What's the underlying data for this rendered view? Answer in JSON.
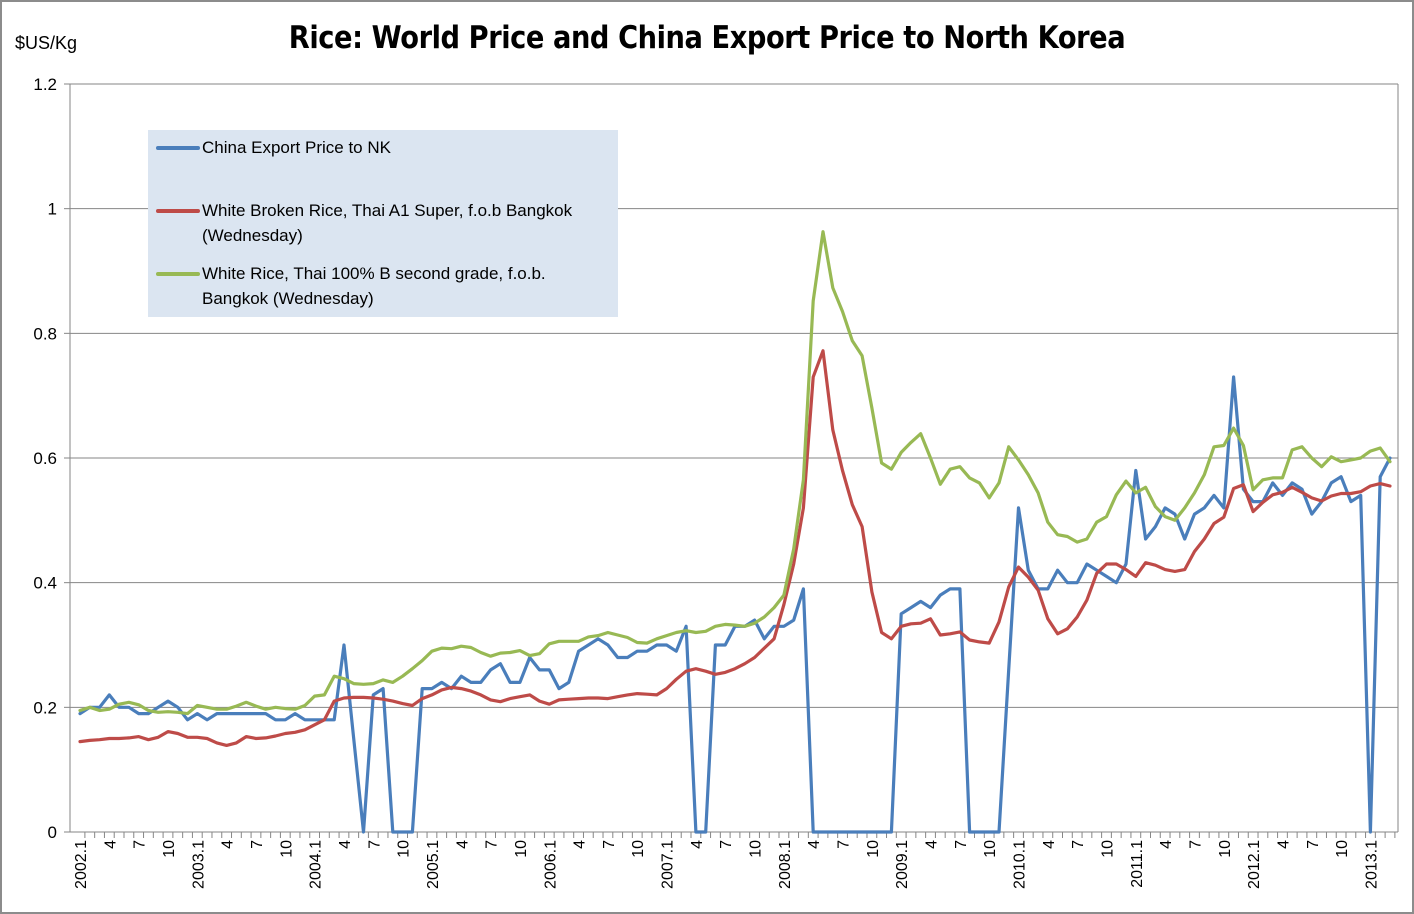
{
  "chart_data": {
    "type": "line",
    "title": "Rice: World Price and China Export Price to North Korea",
    "ylabel": "$US/Kg",
    "xlabel": "",
    "ylim": [
      0,
      1.2
    ],
    "yticks": [
      "0",
      "0.2",
      "0.4",
      "0.6",
      "0.8",
      "1",
      "1.2"
    ],
    "grid": true,
    "legend_position": "top-left",
    "x_start": "2002.1",
    "x_end": "2013.3",
    "x_interval": "monthly",
    "series": [
      {
        "name": "China Export Price to NK",
        "color": "#4a7ebb",
        "values": [
          0.19,
          0.2,
          0.2,
          0.22,
          0.2,
          0.2,
          0.19,
          0.19,
          0.2,
          0.21,
          0.2,
          0.18,
          0.19,
          0.18,
          0.19,
          0.19,
          0.19,
          0.19,
          0.19,
          0.19,
          0.18,
          0.18,
          0.19,
          0.18,
          0.18,
          0.18,
          0.18,
          0.3,
          0.15,
          0,
          0.22,
          0.23,
          0,
          0,
          0,
          0.23,
          0.23,
          0.24,
          0.23,
          0.25,
          0.24,
          0.24,
          0.26,
          0.27,
          0.24,
          0.24,
          0.28,
          0.26,
          0.26,
          0.23,
          0.24,
          0.29,
          0.3,
          0.31,
          0.3,
          0.28,
          0.28,
          0.29,
          0.29,
          0.3,
          0.3,
          0.29,
          0.33,
          0,
          0,
          0.3,
          0.3,
          0.33,
          0.33,
          0.34,
          0.31,
          0.33,
          0.33,
          0.34,
          0.39,
          0,
          0,
          0,
          0,
          0,
          0,
          0,
          0,
          0,
          0.35,
          0.36,
          0.37,
          0.36,
          0.38,
          0.39,
          0.39,
          0,
          0,
          0,
          0,
          0.26,
          0.52,
          0.42,
          0.39,
          0.39,
          0.42,
          0.4,
          0.4,
          0.43,
          0.42,
          0.41,
          0.4,
          0.43,
          0.58,
          0.47,
          0.49,
          0.52,
          0.51,
          0.47,
          0.51,
          0.52,
          0.54,
          0.52,
          0.73,
          0.55,
          0.53,
          0.53,
          0.56,
          0.54,
          0.56,
          0.55,
          0.51,
          0.53,
          0.56,
          0.57,
          0.53,
          0.54,
          0,
          0.57,
          0.6
        ]
      },
      {
        "name": "White Broken Rice, Thai A1 Super, f.o.b Bangkok  (Wednesday)",
        "color": "#be4b48",
        "values": [
          0.145,
          0.147,
          0.148,
          0.15,
          0.15,
          0.151,
          0.153,
          0.148,
          0.152,
          0.161,
          0.158,
          0.152,
          0.152,
          0.15,
          0.143,
          0.139,
          0.143,
          0.153,
          0.15,
          0.151,
          0.154,
          0.158,
          0.16,
          0.164,
          0.172,
          0.18,
          0.21,
          0.215,
          0.216,
          0.216,
          0.215,
          0.213,
          0.21,
          0.206,
          0.203,
          0.214,
          0.22,
          0.228,
          0.232,
          0.23,
          0.226,
          0.22,
          0.212,
          0.209,
          0.214,
          0.217,
          0.22,
          0.21,
          0.205,
          0.212,
          0.213,
          0.214,
          0.215,
          0.215,
          0.214,
          0.217,
          0.22,
          0.222,
          0.221,
          0.22,
          0.23,
          0.245,
          0.258,
          0.262,
          0.258,
          0.253,
          0.256,
          0.262,
          0.27,
          0.28,
          0.295,
          0.31,
          0.365,
          0.43,
          0.52,
          0.73,
          0.772,
          0.645,
          0.58,
          0.525,
          0.49,
          0.385,
          0.32,
          0.31,
          0.33,
          0.334,
          0.335,
          0.342,
          0.316,
          0.318,
          0.321,
          0.308,
          0.305,
          0.303,
          0.337,
          0.393,
          0.425,
          0.409,
          0.388,
          0.342,
          0.318,
          0.326,
          0.345,
          0.372,
          0.415,
          0.43,
          0.43,
          0.421,
          0.41,
          0.432,
          0.428,
          0.421,
          0.418,
          0.421,
          0.45,
          0.47,
          0.495,
          0.505,
          0.551,
          0.557,
          0.514,
          0.529,
          0.541,
          0.545,
          0.553,
          0.545,
          0.536,
          0.531,
          0.539,
          0.543,
          0.543,
          0.546,
          0.555,
          0.559,
          0.555
        ]
      },
      {
        "name": "White Rice, Thai 100% B second grade, f.o.b. Bangkok  (Wednesday)",
        "color": "#98b954",
        "values": [
          0.195,
          0.2,
          0.195,
          0.197,
          0.205,
          0.208,
          0.204,
          0.195,
          0.192,
          0.193,
          0.192,
          0.19,
          0.203,
          0.2,
          0.197,
          0.197,
          0.202,
          0.208,
          0.202,
          0.197,
          0.2,
          0.198,
          0.197,
          0.203,
          0.218,
          0.22,
          0.25,
          0.246,
          0.238,
          0.237,
          0.238,
          0.244,
          0.24,
          0.25,
          0.262,
          0.275,
          0.29,
          0.295,
          0.294,
          0.298,
          0.296,
          0.288,
          0.282,
          0.287,
          0.288,
          0.291,
          0.283,
          0.286,
          0.302,
          0.306,
          0.306,
          0.306,
          0.313,
          0.315,
          0.32,
          0.316,
          0.312,
          0.304,
          0.303,
          0.31,
          0.315,
          0.32,
          0.323,
          0.32,
          0.322,
          0.33,
          0.333,
          0.332,
          0.33,
          0.335,
          0.345,
          0.36,
          0.38,
          0.454,
          0.565,
          0.852,
          0.963,
          0.873,
          0.835,
          0.788,
          0.764,
          0.68,
          0.592,
          0.582,
          0.609,
          0.625,
          0.639,
          0.6,
          0.558,
          0.582,
          0.586,
          0.568,
          0.56,
          0.536,
          0.56,
          0.618,
          0.597,
          0.573,
          0.544,
          0.497,
          0.477,
          0.474,
          0.465,
          0.47,
          0.497,
          0.506,
          0.541,
          0.563,
          0.544,
          0.553,
          0.522,
          0.506,
          0.5,
          0.52,
          0.544,
          0.573,
          0.618,
          0.62,
          0.648,
          0.62,
          0.549,
          0.565,
          0.568,
          0.568,
          0.613,
          0.618,
          0.6,
          0.586,
          0.602,
          0.594,
          0.597,
          0.6,
          0.611,
          0.616,
          0.594
        ]
      }
    ]
  },
  "legend": {
    "items": [
      {
        "lines": [
          "China Export Price to NK"
        ]
      },
      {
        "lines": [
          "White Broken Rice, Thai A1 Super, f.o.b Bangkok",
          "(Wednesday)"
        ]
      },
      {
        "lines": [
          "White Rice, Thai 100% B second grade, f.o.b.",
          "Bangkok  (Wednesday)"
        ]
      }
    ]
  }
}
